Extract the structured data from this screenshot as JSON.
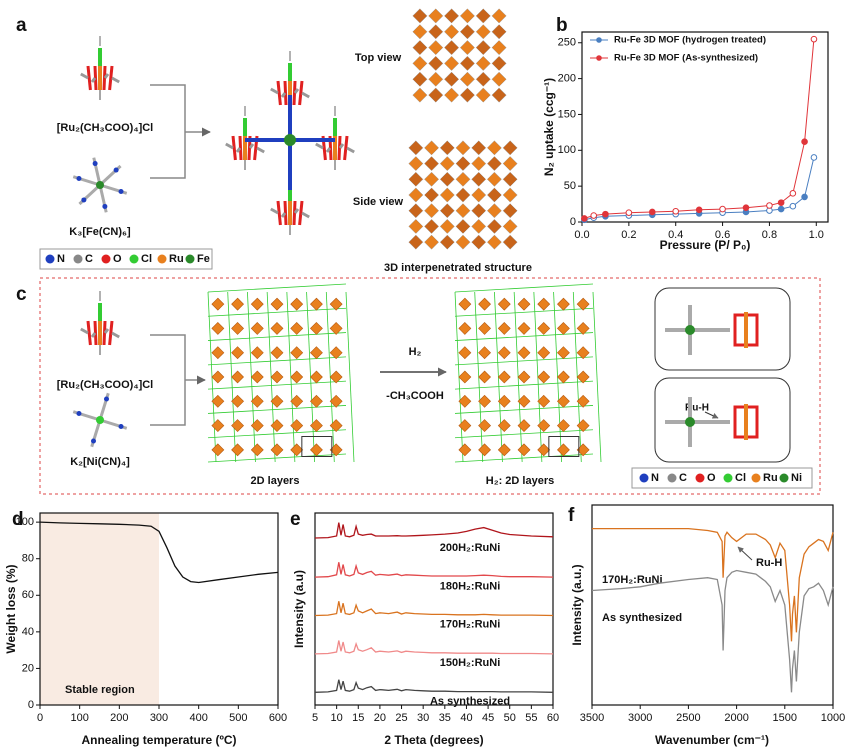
{
  "figure": {
    "panel_labels": [
      "a",
      "b",
      "c",
      "d",
      "e",
      "f"
    ]
  },
  "panel_a": {
    "reagents": [
      "[Ru₂(CH₃COO)₄]Cl",
      "K₃[Fe(CN)₆]"
    ],
    "views": [
      "Top view",
      "Side view"
    ],
    "caption": "3D interpenetrated structure",
    "atoms": [
      "N",
      "C",
      "O",
      "Cl",
      "Ru",
      "Fe"
    ]
  },
  "panel_c": {
    "reagents": [
      "[Ru₂(CH₃COO)₄]Cl",
      "K₂[Ni(CN)₄]"
    ],
    "reagent_label": "H₂",
    "byproduct": "-CH₃COOH",
    "layers": [
      "2D layers",
      "H₂: 2D layers"
    ],
    "inset_label": "Ru-H",
    "atoms": [
      "N",
      "C",
      "O",
      "Cl",
      "Ru",
      "Ni"
    ]
  },
  "chart_data": [
    {
      "type": "line",
      "markers": true,
      "legend": "upper left",
      "xlabel": "Pressure (P/ P₀)",
      "ylabel": "N₂ uptake (ccg⁻¹)",
      "x": [
        0.01,
        0.05,
        0.1,
        0.2,
        0.3,
        0.4,
        0.5,
        0.6,
        0.7,
        0.8,
        0.85,
        0.9,
        0.95,
        0.99
      ],
      "series": [
        {
          "name": "Ru-Fe 3D MOF (hydrogen treated)",
          "color": "#4a7fc1",
          "values": [
            3,
            6,
            8,
            9,
            10,
            11,
            12,
            13,
            14,
            16,
            18,
            22,
            35,
            90
          ]
        },
        {
          "name": "Ru-Fe 3D MOF (As-synthesized)",
          "color": "#e0353a",
          "values": [
            5,
            9,
            11,
            13,
            14,
            15,
            17,
            18,
            20,
            23,
            27,
            40,
            112,
            255
          ]
        }
      ],
      "xlim": [
        0,
        1.05
      ],
      "xticks": [
        {
          "value": 0,
          "label": "0.0"
        },
        0.2,
        0.4,
        0.6,
        0.8,
        {
          "value": 1,
          "label": "1.0"
        }
      ],
      "ylim": [
        0,
        265
      ],
      "yticks": [
        0,
        50,
        100,
        150,
        200,
        250
      ]
    },
    {
      "type": "line",
      "color": "#111111",
      "xlabel": "Annealing temperature (ºC)",
      "ylabel": "Weight loss (%)",
      "annotation": "Stable region",
      "shaded_region": [
        0,
        300
      ],
      "x": [
        0,
        50,
        100,
        150,
        200,
        250,
        280,
        300,
        320,
        340,
        360,
        380,
        400,
        450,
        500,
        550,
        600
      ],
      "values": [
        100,
        99.6,
        99.3,
        99.1,
        98.8,
        98.4,
        97.8,
        95,
        86,
        76,
        70,
        67.5,
        67,
        68.5,
        70,
        71.5,
        72.5
      ],
      "xlim": [
        0,
        600
      ],
      "xticks": [
        0,
        100,
        200,
        300,
        400,
        500,
        600
      ],
      "ylim": [
        0,
        105
      ],
      "yticks": [
        0,
        20,
        40,
        60,
        80,
        100
      ]
    },
    {
      "type": "line",
      "legend": "inline",
      "xlabel": "2 Theta (degrees)",
      "ylabel": "Intensity (a.u)",
      "x": [
        5,
        8,
        10,
        10.5,
        11,
        11.5,
        12,
        13,
        14,
        14.5,
        15,
        16,
        17,
        18,
        19,
        20,
        22,
        24,
        25,
        26,
        28,
        30,
        32,
        35,
        38,
        40,
        42,
        44,
        46,
        48,
        50,
        55,
        60
      ],
      "series": [
        {
          "name": "200H₂:RuNi",
          "color": "#b0151b",
          "values": [
            0.5,
            0.6,
            1,
            4.5,
            1.2,
            4,
            1,
            0.8,
            1.2,
            3.5,
            1.5,
            1.2,
            1.4,
            1.5,
            1,
            1,
            1,
            1.1,
            1,
            1,
            1.1,
            1.2,
            1.3,
            1.5,
            1.8,
            2.2,
            2.8,
            3.2,
            2.5,
            1.8,
            1.4,
            1,
            0.8
          ]
        },
        {
          "name": "180H₂:RuNi",
          "color": "#e2484b",
          "values": [
            0.3,
            0.4,
            0.9,
            4.2,
            1,
            3.6,
            0.9,
            0.6,
            1,
            3.2,
            1.4,
            1,
            1.5,
            1.8,
            0.8,
            1,
            0.8,
            1.1,
            0.7,
            0.9,
            0.8,
            0.7,
            0.6,
            0.6,
            0.6,
            0.6,
            0.7,
            0.8,
            0.7,
            0.5,
            0.4,
            0.4,
            0.3
          ]
        },
        {
          "name": "170H₂:RuNi",
          "color": "#d9731f",
          "values": [
            0.3,
            0.4,
            0.8,
            4,
            1,
            3.5,
            0.8,
            0.6,
            1,
            3,
            1.5,
            1,
            1.5,
            2,
            0.8,
            1,
            0.8,
            1.2,
            0.7,
            1,
            0.8,
            0.7,
            0.6,
            0.6,
            0.5,
            0.5,
            0.5,
            0.6,
            0.5,
            0.4,
            0.4,
            0.4,
            0.3
          ]
        },
        {
          "name": "150H₂:RuNi",
          "color": "#f08a8a",
          "values": [
            0.3,
            0.4,
            0.8,
            3.8,
            1,
            3.4,
            0.8,
            0.6,
            1,
            2.9,
            1.4,
            1,
            1.4,
            1.9,
            0.8,
            1,
            0.8,
            1.1,
            0.7,
            1,
            0.8,
            0.7,
            0.6,
            0.6,
            0.5,
            0.5,
            0.5,
            0.5,
            0.5,
            0.4,
            0.4,
            0.4,
            0.3
          ]
        },
        {
          "name": "As synthesized",
          "color": "#444444",
          "values": [
            0.3,
            0.4,
            0.8,
            3.6,
            1,
            3.2,
            0.8,
            0.6,
            1,
            2.8,
            1.4,
            1,
            1.5,
            1.8,
            0.8,
            1,
            0.8,
            1.1,
            0.7,
            1,
            0.8,
            0.7,
            0.6,
            0.6,
            0.5,
            0.5,
            0.5,
            0.5,
            0.5,
            0.4,
            0.4,
            0.4,
            0.3
          ]
        }
      ],
      "xlim": [
        5,
        60
      ],
      "xticks": [
        5,
        10,
        15,
        20,
        25,
        30,
        35,
        40,
        45,
        50,
        55,
        60
      ],
      "ylim": [
        0,
        50
      ]
    },
    {
      "type": "line",
      "legend": "inline",
      "annotation": "Ru-H",
      "xlabel": "Wavenumber (cm⁻¹)",
      "ylabel": "Intensity (a.u.)",
      "x": [
        3500,
        3200,
        3000,
        2800,
        2500,
        2300,
        2200,
        2150,
        2140,
        2120,
        2100,
        2050,
        2000,
        1900,
        1800,
        1700,
        1650,
        1600,
        1550,
        1500,
        1450,
        1430,
        1420,
        1400,
        1380,
        1350,
        1300,
        1250,
        1200,
        1150,
        1100,
        1050,
        1000
      ],
      "series": [
        {
          "name": "170H₂:RuNi",
          "color": "#d9731f",
          "values": [
            9.2,
            9.2,
            9.2,
            9.2,
            9.2,
            9.1,
            9.0,
            8.5,
            6.5,
            8.8,
            9.0,
            8.7,
            8.5,
            8.9,
            8.9,
            8.6,
            8.3,
            7.6,
            8.4,
            8.0,
            5.0,
            3.0,
            4.5,
            5.5,
            3.5,
            6.5,
            7.8,
            8.2,
            8.4,
            8.6,
            8.5,
            8.0,
            9.0
          ]
        },
        {
          "name": "As synthesized",
          "color": "#8a8a8a",
          "values": [
            5.8,
            5.9,
            6.0,
            6.2,
            6.4,
            6.5,
            6.4,
            5.0,
            2.5,
            5.8,
            6.5,
            6.8,
            6.9,
            6.8,
            6.7,
            6.3,
            6.0,
            5.2,
            5.8,
            5.0,
            2.0,
            0.2,
            1.5,
            2.5,
            0.8,
            3.5,
            5.5,
            5.9,
            6.0,
            6.2,
            5.8,
            5.0,
            6.0
          ]
        }
      ],
      "xlim": [
        3500,
        1000
      ],
      "xticks": [
        3500,
        3000,
        2500,
        2000,
        1500,
        1000
      ],
      "ylim": [
        -0.5,
        10.5
      ]
    }
  ]
}
